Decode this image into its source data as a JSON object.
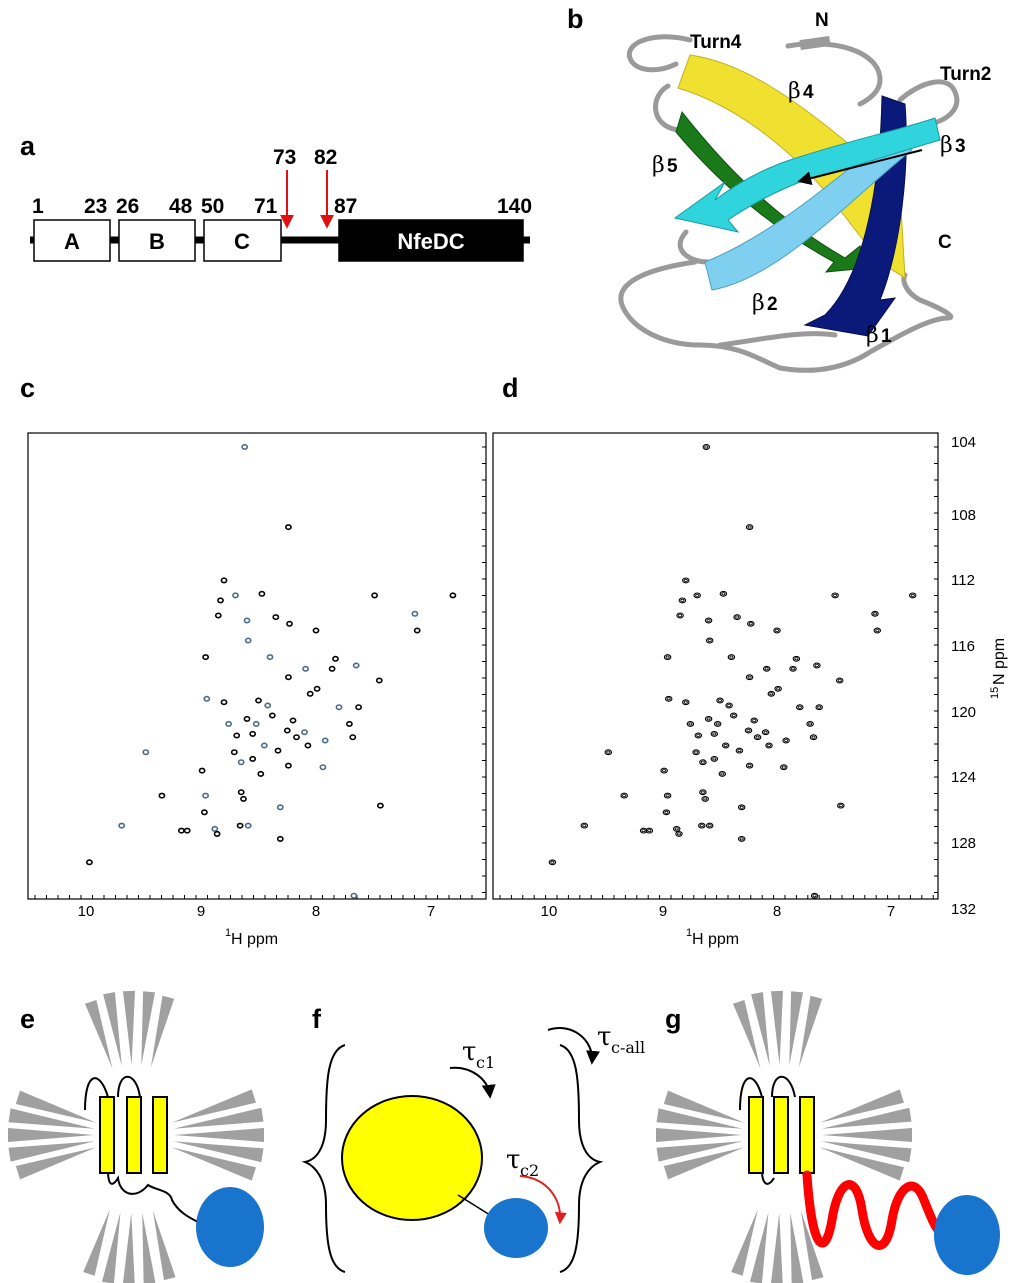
{
  "panels": {
    "a": "a",
    "b": "b",
    "c": "c",
    "d": "d",
    "e": "e",
    "f": "f",
    "g": "g"
  },
  "domain_map": {
    "residues": [
      "1",
      "23",
      "26",
      "48",
      "50",
      "71",
      "87",
      "140"
    ],
    "cut_sites": [
      "73",
      "82"
    ],
    "boxes": [
      "A",
      "B",
      "C",
      "NfeDC"
    ],
    "colors": {
      "arrow": "#e01010",
      "nfedc": "#000000"
    }
  },
  "structure": {
    "labels": {
      "turn4": "Turn4",
      "turn2": "Turn2",
      "n_term": "N",
      "c_term": "C"
    },
    "strands": {
      "b1": "1",
      "b2": "2",
      "b3": "3",
      "b4": "4",
      "b5": "5"
    },
    "beta_symbol": "β",
    "colors": {
      "b1": "#0b1a7a",
      "b2": "#7fd0f0",
      "b3": "#2fd4dc",
      "b4": "#f0e030",
      "b5": "#1a7a1a",
      "loop": "#9a9a9a"
    }
  },
  "spectra": {
    "x_axis": {
      "label": "H ppm",
      "sup": "1",
      "ticks": [
        "10",
        "9",
        "8",
        "7"
      ]
    },
    "y_axis": {
      "label": "N ppm",
      "sup": "15",
      "ticks": [
        "104",
        "108",
        "112",
        "116",
        "120",
        "124",
        "128",
        "132"
      ]
    },
    "peaks": [
      [
        8.62,
        104.0
      ],
      [
        8.24,
        108.8
      ],
      [
        8.8,
        112.0
      ],
      [
        8.7,
        112.9
      ],
      [
        8.47,
        112.8
      ],
      [
        8.85,
        114.1
      ],
      [
        8.6,
        114.4
      ],
      [
        8.23,
        114.6
      ],
      [
        7.49,
        112.9
      ],
      [
        7.14,
        114.0
      ],
      [
        7.12,
        115.0
      ],
      [
        6.81,
        112.9
      ],
      [
        8.59,
        115.6
      ],
      [
        8.0,
        115.0
      ],
      [
        8.96,
        116.6
      ],
      [
        8.4,
        116.6
      ],
      [
        7.83,
        116.7
      ],
      [
        7.86,
        117.3
      ],
      [
        7.65,
        117.1
      ],
      [
        8.24,
        117.8
      ],
      [
        7.45,
        118.0
      ],
      [
        8.95,
        119.1
      ],
      [
        8.8,
        119.3
      ],
      [
        8.5,
        119.2
      ],
      [
        8.42,
        119.5
      ],
      [
        8.38,
        120.1
      ],
      [
        8.05,
        118.8
      ],
      [
        7.8,
        119.6
      ],
      [
        7.63,
        119.6
      ],
      [
        8.6,
        120.3
      ],
      [
        8.76,
        120.6
      ],
      [
        8.69,
        121.3
      ],
      [
        8.55,
        121.2
      ],
      [
        8.45,
        121.9
      ],
      [
        8.25,
        121.0
      ],
      [
        8.17,
        121.4
      ],
      [
        8.1,
        121.1
      ],
      [
        8.07,
        121.9
      ],
      [
        8.33,
        122.2
      ],
      [
        7.92,
        121.6
      ],
      [
        7.71,
        120.6
      ],
      [
        7.68,
        121.4
      ],
      [
        9.48,
        122.3
      ],
      [
        8.71,
        122.3
      ],
      [
        8.55,
        122.7
      ],
      [
        8.65,
        122.9
      ],
      [
        8.48,
        123.6
      ],
      [
        8.24,
        123.1
      ],
      [
        7.94,
        123.2
      ],
      [
        8.99,
        123.4
      ],
      [
        9.34,
        124.9
      ],
      [
        8.96,
        124.9
      ],
      [
        8.65,
        124.7
      ],
      [
        8.63,
        125.1
      ],
      [
        8.31,
        125.6
      ],
      [
        7.44,
        125.5
      ],
      [
        8.97,
        125.9
      ],
      [
        9.69,
        126.7
      ],
      [
        9.17,
        127.0
      ],
      [
        9.12,
        127.0
      ],
      [
        8.88,
        126.9
      ],
      [
        8.86,
        127.2
      ],
      [
        8.66,
        126.7
      ],
      [
        8.59,
        126.7
      ],
      [
        8.31,
        127.5
      ],
      [
        9.97,
        128.9
      ],
      [
        7.67,
        130.9
      ],
      [
        8.83,
        113.2
      ],
      [
        8.35,
        114.2
      ],
      [
        8.09,
        117.3
      ],
      [
        7.99,
        118.5
      ],
      [
        8.2,
        120.4
      ],
      [
        8.52,
        120.6
      ]
    ]
  },
  "dynamics": {
    "tau_symbol": "τ",
    "tau_labels": {
      "c1": "c1",
      "c2": "c2",
      "call": "c-all"
    },
    "colors": {
      "domain": "#ffff00",
      "partner": "#1874cd",
      "linker": "#ff0000",
      "ray": "#a0a0a0",
      "arrow2": "#e02020"
    }
  }
}
